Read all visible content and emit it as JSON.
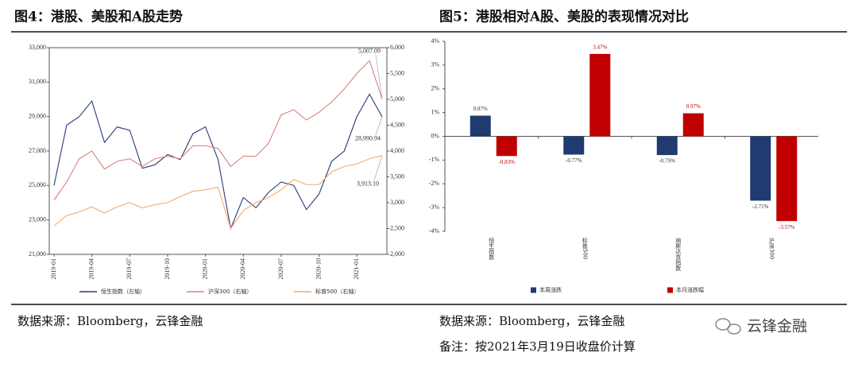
{
  "chart_data": [
    {
      "type": "line",
      "title": "图4：港股、美股和A股走势",
      "categories": [
        "2019-01",
        null,
        null,
        "2019-04",
        null,
        null,
        "2019-07",
        null,
        null,
        "2019-10",
        null,
        null,
        "2020-01",
        null,
        null,
        "2020-04",
        null,
        null,
        "2020-07",
        null,
        null,
        "2020-10",
        null,
        null,
        "2021-01",
        null,
        null
      ],
      "series": [
        {
          "name": "恒生指数（左轴）",
          "color": "#2b3a7a",
          "axis": "y",
          "values": [
            25000,
            28500,
            29000,
            29900,
            27500,
            28400,
            28200,
            26000,
            26200,
            26800,
            26500,
            28000,
            28400,
            26500,
            22500,
            24300,
            23700,
            24600,
            25200,
            25000,
            23600,
            24500,
            26400,
            27000,
            29000,
            30300,
            28990.94
          ],
          "value_labels": [
            null,
            null,
            null,
            null,
            null,
            null,
            null,
            null,
            null,
            null,
            null,
            null,
            null,
            null,
            null,
            null,
            null,
            null,
            null,
            null,
            null,
            null,
            null,
            null,
            null,
            null,
            "28,990.94"
          ]
        },
        {
          "name": "沪深300（右轴）",
          "color": "#d9827f",
          "axis": "y2",
          "values": [
            3050,
            3400,
            3850,
            4000,
            3650,
            3800,
            3850,
            3700,
            3850,
            3900,
            3850,
            4100,
            4100,
            4050,
            3700,
            3900,
            3900,
            4150,
            4700,
            4800,
            4600,
            4750,
            4950,
            5200,
            5500,
            5750,
            5007.09
          ],
          "value_labels": [
            null,
            null,
            null,
            null,
            null,
            null,
            null,
            null,
            null,
            null,
            null,
            null,
            null,
            null,
            null,
            null,
            null,
            null,
            null,
            null,
            null,
            null,
            null,
            null,
            null,
            null,
            "5,007.09"
          ]
        },
        {
          "name": "标普500（右轴）",
          "color": "#f5a96a",
          "axis": "y2",
          "values": [
            2550,
            2750,
            2820,
            2920,
            2800,
            2920,
            3000,
            2900,
            2960,
            3000,
            3120,
            3220,
            3250,
            3300,
            2500,
            2850,
            3000,
            3100,
            3250,
            3450,
            3350,
            3350,
            3600,
            3700,
            3750,
            3850,
            3913.1
          ],
          "value_labels": [
            null,
            null,
            null,
            null,
            null,
            null,
            null,
            null,
            null,
            null,
            null,
            null,
            null,
            null,
            null,
            null,
            null,
            null,
            null,
            null,
            null,
            null,
            null,
            null,
            null,
            null,
            "3,913.10"
          ]
        }
      ],
      "ylim": [
        21000,
        33000
      ],
      "yticks": [
        {
          "value": 21000,
          "label": "21,000"
        },
        {
          "value": 23000,
          "label": "23,000"
        },
        {
          "value": 25000,
          "label": "25,000"
        },
        {
          "value": 27000,
          "label": "27,000"
        },
        {
          "value": 29000,
          "label": "29,000"
        },
        {
          "value": 31000,
          "label": "31,000"
        },
        {
          "value": 33000,
          "label": "33,000"
        }
      ],
      "y2lim": [
        2000,
        6000
      ],
      "y2ticks": [
        {
          "value": 2000,
          "label": "2,000"
        },
        {
          "value": 2500,
          "label": "2,500"
        },
        {
          "value": 3000,
          "label": "3,000"
        },
        {
          "value": 3500,
          "label": "3,500"
        },
        {
          "value": 4000,
          "label": "4,000"
        },
        {
          "value": 4500,
          "label": "4,500"
        },
        {
          "value": 5000,
          "label": "5,000"
        },
        {
          "value": 5500,
          "label": "5,500"
        },
        {
          "value": 6000,
          "label": "6,000"
        }
      ],
      "source": "数据来源：Bloomberg，云锋金融"
    },
    {
      "type": "bar",
      "title": "图5：港股相对A股、美股的表现情况对比",
      "categories": [
        "恒生指数",
        "标普500",
        "纳斯达克指数",
        "沪深300"
      ],
      "series": [
        {
          "name": "本周涨跌",
          "color": "#1f3b70",
          "values": [
            0.87,
            -0.77,
            -0.79,
            -2.71
          ],
          "value_labels": [
            "0.87%",
            "-0.77%",
            "-0.79%",
            "-2.71%"
          ]
        },
        {
          "name": "本月涨跌幅",
          "color": "#c00000",
          "values": [
            -0.83,
            3.47,
            0.97,
            -3.57
          ],
          "value_labels": [
            "-0.83%",
            "3.47%",
            "0.97%",
            "-3.57%"
          ]
        }
      ],
      "ylim": [
        -4,
        4
      ],
      "yticks": [
        {
          "value": -4,
          "label": "-4%"
        },
        {
          "value": -3,
          "label": "-3%"
        },
        {
          "value": -2,
          "label": "-2%"
        },
        {
          "value": -1,
          "label": "-1%"
        },
        {
          "value": 0,
          "label": "0%"
        },
        {
          "value": 1,
          "label": "1%"
        },
        {
          "value": 2,
          "label": "2%"
        },
        {
          "value": 3,
          "label": "3%"
        },
        {
          "value": 4,
          "label": "4%"
        }
      ],
      "source": "数据来源：Bloomberg，云锋金融",
      "note": "备注：按2021年3月19日收盘价计算"
    }
  ],
  "watermark": "云锋金融"
}
